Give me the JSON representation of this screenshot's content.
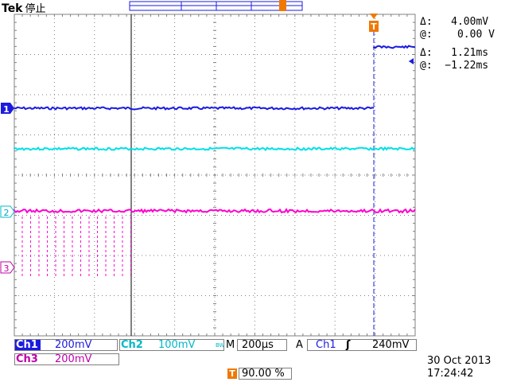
{
  "header": {
    "brand": "Tek",
    "status": "停止"
  },
  "readouts": {
    "voltage_delta": "Δ:   4.00mV",
    "voltage_at": "@:    0.00 V",
    "time_delta": "Δ:   1.21ms",
    "time_at": "@:  −1.22ms"
  },
  "channel_markers": {
    "ch1": "1",
    "ch2": "2",
    "ch3": "3"
  },
  "trigger_marker": "T",
  "bottom_bar": {
    "ch1_label": "Ch1",
    "ch1_scale": "200mV",
    "ch2_label": "Ch2",
    "ch2_scale": "100mV",
    "ch2_bw": "BW",
    "timebase_label": "M",
    "timebase_value": "200µs",
    "trigger_mode": "A",
    "trigger_source": "Ch1",
    "trigger_slope": "ʃ",
    "trigger_level": "240mV",
    "ch3_label": "Ch3",
    "ch3_scale": "200mV",
    "trigger_position_icon": "T",
    "trigger_position": "90.00 %"
  },
  "datetime": {
    "date": "30 Oct  2013",
    "time": "17:24:42"
  },
  "colors": {
    "ch1": "#1b1be0",
    "ch2": "#00e0e8",
    "ch3": "#ff00d0",
    "trigger": "#f07800",
    "grid": "#808080"
  }
}
